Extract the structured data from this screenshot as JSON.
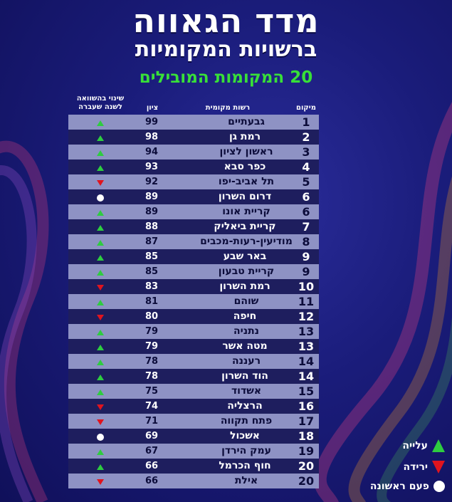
{
  "title_line1": "מדד הגאווה",
  "title_line2": "ברשויות המקומיות",
  "subtitle": "20 המקומות המובילים",
  "headers": {
    "rank": "מיקום",
    "authority": "רשות מקומית",
    "score": "ציון",
    "change_line1": "שינוי בהשוואה",
    "change_line2": "לשנה שעברה"
  },
  "colors": {
    "up": "#2ecc40",
    "down": "#e0141e",
    "new": "#ffffff",
    "subtitle": "#38e038"
  },
  "rows": [
    {
      "rank": "1",
      "name": "גבעתיים",
      "score": "99",
      "change": "up"
    },
    {
      "rank": "2",
      "name": "רמת גן",
      "score": "98",
      "change": "up"
    },
    {
      "rank": "3",
      "name": "ראשון לציון",
      "score": "94",
      "change": "up"
    },
    {
      "rank": "4",
      "name": "כפר סבא",
      "score": "93",
      "change": "up"
    },
    {
      "rank": "5",
      "name": "תל אביב-יפו",
      "score": "92",
      "change": "down"
    },
    {
      "rank": "6",
      "name": "דרום השרון",
      "score": "89",
      "change": "new"
    },
    {
      "rank": "6",
      "name": "קריית אונו",
      "score": "89",
      "change": "up"
    },
    {
      "rank": "7",
      "name": "קריית ביאליק",
      "score": "88",
      "change": "up"
    },
    {
      "rank": "8",
      "name": "מודיעין-רעות-מכבים",
      "score": "87",
      "change": "up"
    },
    {
      "rank": "9",
      "name": "באר שבע",
      "score": "85",
      "change": "up"
    },
    {
      "rank": "9",
      "name": "קריית טבעון",
      "score": "85",
      "change": "up"
    },
    {
      "rank": "10",
      "name": "רמת השרון",
      "score": "83",
      "change": "down"
    },
    {
      "rank": "11",
      "name": "שוהם",
      "score": "81",
      "change": "up"
    },
    {
      "rank": "12",
      "name": "חיפה",
      "score": "80",
      "change": "down"
    },
    {
      "rank": "13",
      "name": "נתניה",
      "score": "79",
      "change": "up"
    },
    {
      "rank": "13",
      "name": "מטה אשר",
      "score": "79",
      "change": "up"
    },
    {
      "rank": "14",
      "name": "רעננה",
      "score": "78",
      "change": "up"
    },
    {
      "rank": "14",
      "name": "הוד השרון",
      "score": "78",
      "change": "up"
    },
    {
      "rank": "15",
      "name": "אשדוד",
      "score": "75",
      "change": "up"
    },
    {
      "rank": "16",
      "name": "הרצליה",
      "score": "74",
      "change": "down"
    },
    {
      "rank": "17",
      "name": "פתח תקווה",
      "score": "71",
      "change": "down"
    },
    {
      "rank": "18",
      "name": "אשכול",
      "score": "69",
      "change": "new"
    },
    {
      "rank": "19",
      "name": "עמק הירדן",
      "score": "67",
      "change": "up"
    },
    {
      "rank": "20",
      "name": "חוף הכרמל",
      "score": "66",
      "change": "up"
    },
    {
      "rank": "20",
      "name": "אילת",
      "score": "66",
      "change": "down"
    }
  ],
  "legend": {
    "up": "עלייה",
    "down": "ירידה",
    "new": "פעם ראשונה"
  }
}
